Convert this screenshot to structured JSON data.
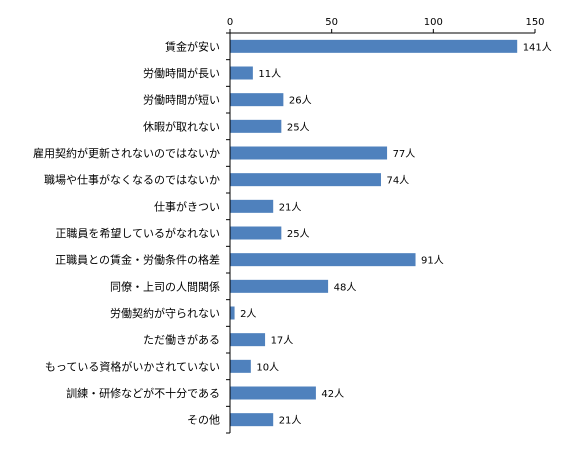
{
  "chart_data": {
    "type": "bar",
    "orientation": "horizontal",
    "title": "",
    "xlabel": "",
    "ylabel": "",
    "xlim": [
      0,
      150
    ],
    "ticks": [
      0,
      50,
      100,
      150
    ],
    "tick_labels": [
      "0",
      "50",
      "100",
      "150"
    ],
    "grid": false,
    "unit_suffix": "人",
    "bar_color": "#4f81bd",
    "categories": [
      "賃金が安い",
      "労働時間が長い",
      "労働時間が短い",
      "休暇が取れない",
      "雇用契約が更新されないのではないか",
      "職場や仕事がなくなるのではないか",
      "仕事がきつい",
      "正職員を希望しているがなれない",
      "正職員との賃金・労働条件の格差",
      "同僚・上司の人間関係",
      "労働契約が守られない",
      "ただ働きがある",
      "もっている資格がいかされていない",
      "訓練・研修などが不十分である",
      "その他"
    ],
    "values": [
      141,
      11,
      26,
      25,
      77,
      74,
      21,
      25,
      91,
      48,
      2,
      17,
      10,
      42,
      21
    ],
    "data_labels": [
      "141人",
      "11人",
      "26人",
      "25人",
      "77人",
      "74人",
      "21人",
      "25人",
      "91人",
      "48人",
      "2人",
      "17人",
      "10人",
      "42人",
      "21人"
    ]
  }
}
